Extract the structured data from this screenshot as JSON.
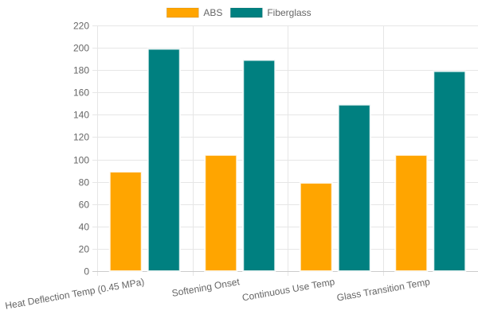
{
  "chart_data": {
    "type": "bar",
    "categories": [
      "Heat Deflection Temp (0.45 MPa)",
      "Softening Onset",
      "Continuous Use Temp",
      "Glass Transition Temp"
    ],
    "series": [
      {
        "name": "ABS",
        "values": [
          89,
          104,
          79,
          104
        ],
        "color": "#FFA500"
      },
      {
        "name": "Fiberglass",
        "values": [
          199,
          189,
          149,
          179
        ],
        "color": "#008080"
      }
    ],
    "title": "",
    "xlabel": "",
    "ylabel": "",
    "ylim": [
      0,
      220
    ],
    "yticks": [
      0,
      20,
      40,
      60,
      80,
      100,
      120,
      140,
      160,
      180,
      200,
      220
    ],
    "grid": true,
    "legend_position": "top"
  }
}
